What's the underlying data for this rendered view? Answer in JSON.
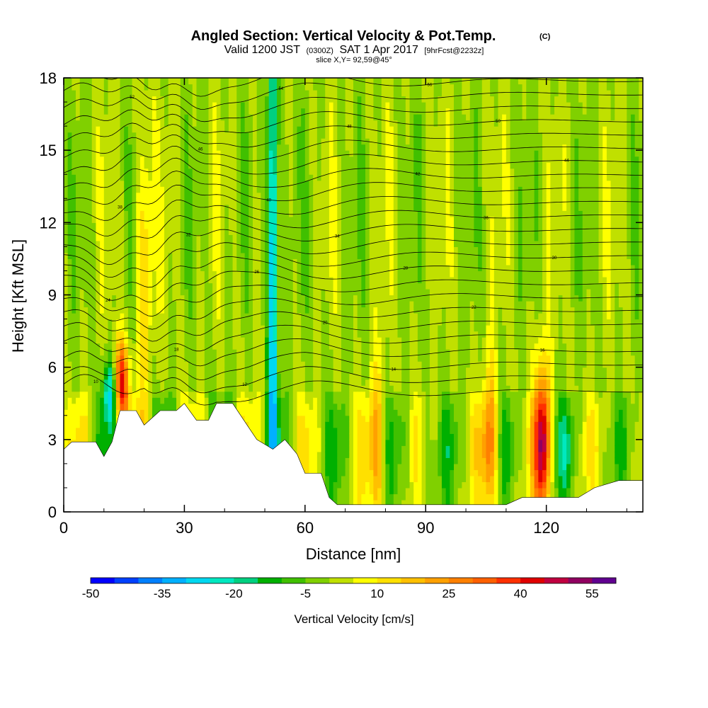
{
  "title": {
    "main": "Angled Section: Vertical Velocity & Pot.Temp.",
    "main_suffix": "(C)",
    "valid_prefix": "Valid 1200 JST",
    "valid_utc": "(0300Z)",
    "valid_date": "SAT 1 Apr 2017",
    "forecast": "[9hrFcst@2232z]",
    "slice": "slice X,Y= 92,59@45°"
  },
  "colorbar": {
    "label": "Vertical Velocity [cm/s]",
    "tick_labels": [
      "-50",
      "-35",
      "-20",
      "-5",
      "10",
      "25",
      "40",
      "55"
    ],
    "colors": [
      "#0000ff",
      "#0040ff",
      "#0080ff",
      "#00b0ff",
      "#00d8f0",
      "#00e8c0",
      "#00d080",
      "#00b000",
      "#40c000",
      "#80d000",
      "#c0e000",
      "#ffff00",
      "#ffe000",
      "#ffc000",
      "#ffa000",
      "#ff8000",
      "#ff6000",
      "#ff3000",
      "#e00000",
      "#c00040",
      "#900060",
      "#600090"
    ]
  },
  "chart_data": {
    "type": "heatmap",
    "title": "Angled Section: Vertical Velocity & Pot.Temp.",
    "xlabel": "Distance [nm]",
    "ylabel": "Height [Kft MSL]",
    "xlim": [
      0,
      144
    ],
    "ylim": [
      0,
      18
    ],
    "x_ticks": [
      0,
      30,
      60,
      90,
      120
    ],
    "y_ticks": [
      0,
      3,
      6,
      9,
      12,
      15,
      18
    ],
    "color_variable": "Vertical Velocity [cm/s]",
    "color_range": [
      -50,
      60
    ],
    "contour_variable": "Pot.Temp. (C)",
    "contour_levels": [
      10,
      12,
      14,
      16,
      18,
      20,
      22,
      24,
      26,
      28,
      30,
      32,
      34,
      36,
      38,
      40,
      42,
      44,
      46,
      48,
      50,
      52,
      54,
      56
    ],
    "terrain": [
      [
        0,
        2.6
      ],
      [
        2,
        2.9
      ],
      [
        8,
        2.9
      ],
      [
        10,
        2.3
      ],
      [
        12,
        2.9
      ],
      [
        14,
        4.2
      ],
      [
        18,
        4.2
      ],
      [
        20,
        3.6
      ],
      [
        24,
        4.2
      ],
      [
        28,
        4.2
      ],
      [
        30,
        4.5
      ],
      [
        33,
        3.8
      ],
      [
        36,
        3.8
      ],
      [
        38,
        4.5
      ],
      [
        42,
        4.5
      ],
      [
        46,
        3.5
      ],
      [
        48,
        3.0
      ],
      [
        52,
        2.6
      ],
      [
        55,
        3.0
      ],
      [
        58,
        2.4
      ],
      [
        60,
        1.6
      ],
      [
        64,
        1.6
      ],
      [
        66,
        0.6
      ],
      [
        68,
        0.3
      ],
      [
        110,
        0.3
      ],
      [
        114,
        0.6
      ],
      [
        128,
        0.6
      ],
      [
        132,
        1.0
      ],
      [
        138,
        1.3
      ],
      [
        144,
        1.3
      ]
    ],
    "features": [
      {
        "type": "updraft",
        "x": 14,
        "z_range": [
          4.2,
          6.4
        ],
        "max_cm_s": 50
      },
      {
        "type": "downdraft",
        "x": 12,
        "z_range": [
          4.2,
          6.0
        ],
        "min_cm_s": -35
      },
      {
        "type": "downdraft",
        "x": 52,
        "z_range": [
          3.0,
          18
        ],
        "min_cm_s": -35
      },
      {
        "type": "updraft",
        "x": 119,
        "z_range": [
          0.6,
          5.0
        ],
        "max_cm_s": 45
      },
      {
        "type": "updraft",
        "x": 106,
        "z_range": [
          0.5,
          5.0
        ],
        "max_cm_s": 25
      },
      {
        "type": "updraft",
        "x": 78,
        "z_range": [
          0.3,
          5.0
        ],
        "max_cm_s": 20
      },
      {
        "type": "updraft",
        "x": 20,
        "z_range": [
          6,
          14
        ],
        "max_cm_s": 15
      }
    ]
  }
}
